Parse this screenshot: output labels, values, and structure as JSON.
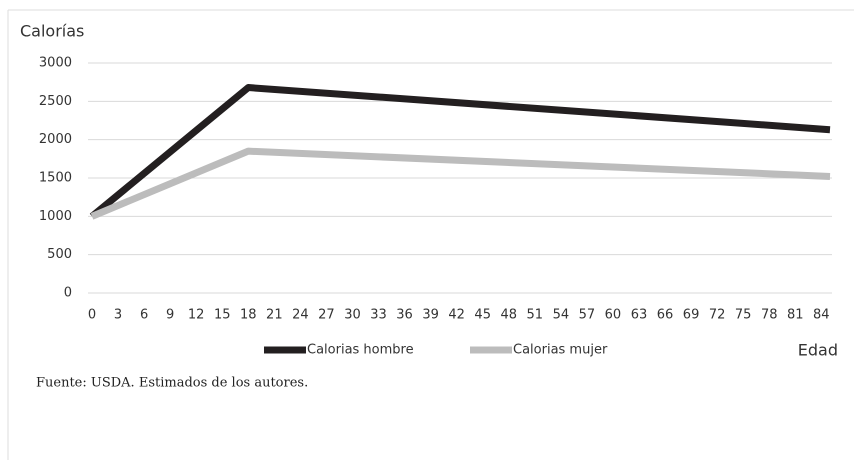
{
  "chart_data": {
    "type": "line",
    "y_label": "Calorías",
    "x_label": "Edad",
    "source": "Fuente: USDA. Estimados de los autores.",
    "x": [
      0,
      18,
      85
    ],
    "series": [
      {
        "name": "Calorias hombre",
        "color": "#231f20",
        "values": [
          1000,
          2680,
          2130
        ]
      },
      {
        "name": "Calorias mujer",
        "color": "#bcbcbc",
        "values": [
          1000,
          1850,
          1520
        ]
      }
    ],
    "xlim": [
      0,
      85
    ],
    "xticks": [
      0,
      3,
      6,
      9,
      12,
      15,
      18,
      21,
      24,
      27,
      30,
      33,
      36,
      39,
      42,
      45,
      48,
      51,
      54,
      57,
      60,
      63,
      66,
      69,
      72,
      75,
      78,
      81,
      84
    ],
    "ylim": [
      0,
      3000
    ],
    "yticks": [
      0,
      500,
      1000,
      1500,
      2000,
      2500,
      3000
    ],
    "grid": true,
    "legend": "bottom"
  }
}
